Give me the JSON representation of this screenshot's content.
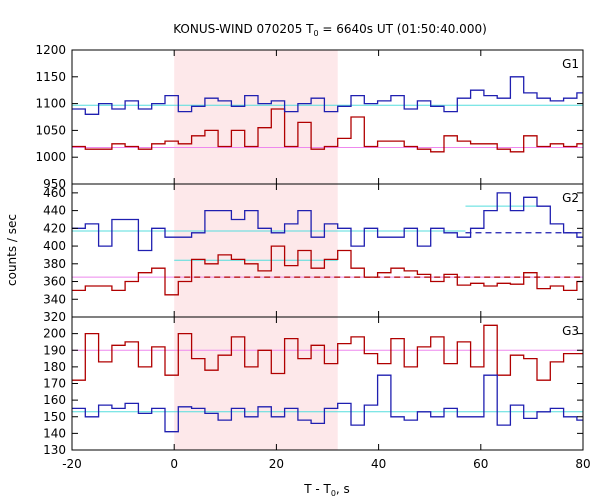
{
  "title_main": "KONUS-WIND 070205 T",
  "title_sub": "0",
  "title_rest": " = 6640s UT (01:50:40.000)",
  "xlabel_main": "T - T",
  "xlabel_sub": "0",
  "xlabel_rest": ", s",
  "ylabel": "counts / sec",
  "colors": {
    "red": "#b00000",
    "blue": "#1f1fb0",
    "pink": "#ee88ee",
    "cyan": "#55dddd",
    "shade": "#fde8ea",
    "dashed_red": "#b00000",
    "dashed_blue": "#1f1fb0"
  },
  "chart_data": [
    {
      "type": "line",
      "panel": "G1",
      "x_range": [
        -20,
        80
      ],
      "ylim": [
        950,
        1200
      ],
      "yticks": [
        950,
        1000,
        1050,
        1100,
        1150,
        1200
      ],
      "xticks": [
        -20,
        0,
        20,
        40,
        60,
        80
      ],
      "shaded_interval": [
        0,
        32
      ],
      "bin_edges": [
        -20,
        -17.4,
        -14.8,
        -12.2,
        -9.6,
        -7,
        -4.4,
        -1.8,
        0.8,
        3.4,
        6,
        8.6,
        11.2,
        13.8,
        16.4,
        19,
        21.6,
        24.2,
        26.8,
        29.4,
        32,
        34.6,
        37.2,
        39.8,
        42.4,
        45,
        47.6,
        50.2,
        52.8,
        55.4,
        58,
        60.6,
        63.2,
        65.8,
        68.4,
        71,
        73.6,
        76.2,
        78.8,
        80
      ],
      "series": [
        {
          "color": "red",
          "values": [
            1020,
            1015,
            1015,
            1025,
            1020,
            1015,
            1025,
            1030,
            1025,
            1040,
            1050,
            1020,
            1050,
            1020,
            1055,
            1090,
            1020,
            1065,
            1015,
            1020,
            1035,
            1075,
            1020,
            1030,
            1030,
            1020,
            1015,
            1010,
            1040,
            1030,
            1025,
            1025,
            1015,
            1010,
            1040,
            1020,
            1025,
            1020,
            1025
          ]
        },
        {
          "color": "blue",
          "values": [
            1090,
            1080,
            1100,
            1090,
            1105,
            1090,
            1100,
            1115,
            1085,
            1095,
            1110,
            1105,
            1095,
            1115,
            1100,
            1105,
            1085,
            1100,
            1110,
            1085,
            1095,
            1115,
            1100,
            1105,
            1115,
            1090,
            1105,
            1095,
            1085,
            1110,
            1125,
            1115,
            1110,
            1150,
            1120,
            1110,
            1105,
            1110,
            1120
          ]
        }
      ],
      "reference_lines": [
        {
          "color": "pink",
          "y": 1018
        },
        {
          "color": "cyan",
          "y": 1097
        }
      ]
    },
    {
      "type": "line",
      "panel": "G2",
      "x_range": [
        -20,
        80
      ],
      "ylim": [
        320,
        470
      ],
      "yticks": [
        320,
        340,
        360,
        380,
        400,
        420,
        440,
        460
      ],
      "xticks": [
        -20,
        0,
        20,
        40,
        60,
        80
      ],
      "shaded_interval": [
        0,
        32
      ],
      "bin_edges": [
        -20,
        -17.4,
        -14.8,
        -12.2,
        -9.6,
        -7,
        -4.4,
        -1.8,
        0.8,
        3.4,
        6,
        8.6,
        11.2,
        13.8,
        16.4,
        19,
        21.6,
        24.2,
        26.8,
        29.4,
        32,
        34.6,
        37.2,
        39.8,
        42.4,
        45,
        47.6,
        50.2,
        52.8,
        55.4,
        58,
        60.6,
        63.2,
        65.8,
        68.4,
        71,
        73.6,
        76.2,
        78.8,
        80
      ],
      "series": [
        {
          "color": "red",
          "values": [
            350,
            355,
            355,
            350,
            360,
            370,
            375,
            345,
            360,
            385,
            380,
            390,
            385,
            380,
            372,
            400,
            378,
            395,
            375,
            385,
            395,
            375,
            365,
            370,
            375,
            372,
            368,
            360,
            368,
            356,
            358,
            355,
            358,
            357,
            370,
            352,
            355,
            350,
            360
          ]
        },
        {
          "color": "blue",
          "values": [
            420,
            425,
            400,
            430,
            430,
            395,
            420,
            410,
            410,
            415,
            440,
            440,
            430,
            440,
            420,
            415,
            425,
            440,
            410,
            425,
            420,
            400,
            420,
            410,
            410,
            420,
            400,
            420,
            415,
            410,
            420,
            440,
            460,
            440,
            455,
            445,
            425,
            415,
            410
          ]
        }
      ],
      "reference_lines": [
        {
          "color": "pink",
          "y": 365,
          "from": -20,
          "to": 80
        },
        {
          "color": "cyan",
          "y": 417,
          "from": -20,
          "to": 57
        },
        {
          "color": "cyan",
          "y": 445,
          "from": 57,
          "to": 71
        },
        {
          "color": "cyan",
          "y": 384,
          "from": 0,
          "to": 32
        }
      ],
      "dashed_lines": [
        {
          "color": "dashed_red",
          "y": 365,
          "from": 0,
          "to": 80
        },
        {
          "color": "dashed_blue",
          "y": 415,
          "from": 57,
          "to": 80
        }
      ]
    },
    {
      "type": "line",
      "panel": "G3",
      "x_range": [
        -20,
        80
      ],
      "ylim": [
        130,
        210
      ],
      "yticks": [
        130,
        140,
        150,
        160,
        170,
        180,
        190,
        200
      ],
      "xticks": [
        -20,
        0,
        20,
        40,
        60,
        80
      ],
      "shaded_interval": [
        0,
        32
      ],
      "bin_edges": [
        -20,
        -17.4,
        -14.8,
        -12.2,
        -9.6,
        -7,
        -4.4,
        -1.8,
        0.8,
        3.4,
        6,
        8.6,
        11.2,
        13.8,
        16.4,
        19,
        21.6,
        24.2,
        26.8,
        29.4,
        32,
        34.6,
        37.2,
        39.8,
        42.4,
        45,
        47.6,
        50.2,
        52.8,
        55.4,
        58,
        60.6,
        63.2,
        65.8,
        68.4,
        71,
        73.6,
        76.2,
        78.8,
        80
      ],
      "series": [
        {
          "color": "red",
          "values": [
            172,
            200,
            183,
            193,
            195,
            180,
            192,
            175,
            200,
            185,
            178,
            187,
            198,
            180,
            190,
            176,
            197,
            185,
            193,
            182,
            194,
            198,
            188,
            182,
            197,
            180,
            192,
            198,
            182,
            195,
            180,
            205,
            175,
            187,
            185,
            172,
            183,
            188,
            188
          ]
        },
        {
          "color": "blue",
          "values": [
            155,
            150,
            157,
            155,
            158,
            152,
            155,
            141,
            156,
            155,
            152,
            148,
            155,
            150,
            156,
            150,
            155,
            148,
            146,
            155,
            158,
            145,
            157,
            175,
            150,
            148,
            153,
            150,
            155,
            150,
            150,
            175,
            145,
            157,
            149,
            153,
            155,
            150,
            148
          ]
        }
      ],
      "reference_lines": [
        {
          "color": "pink",
          "y": 190
        },
        {
          "color": "cyan",
          "y": 153
        }
      ]
    }
  ],
  "panel_labels": [
    "G1",
    "G2",
    "G3"
  ]
}
